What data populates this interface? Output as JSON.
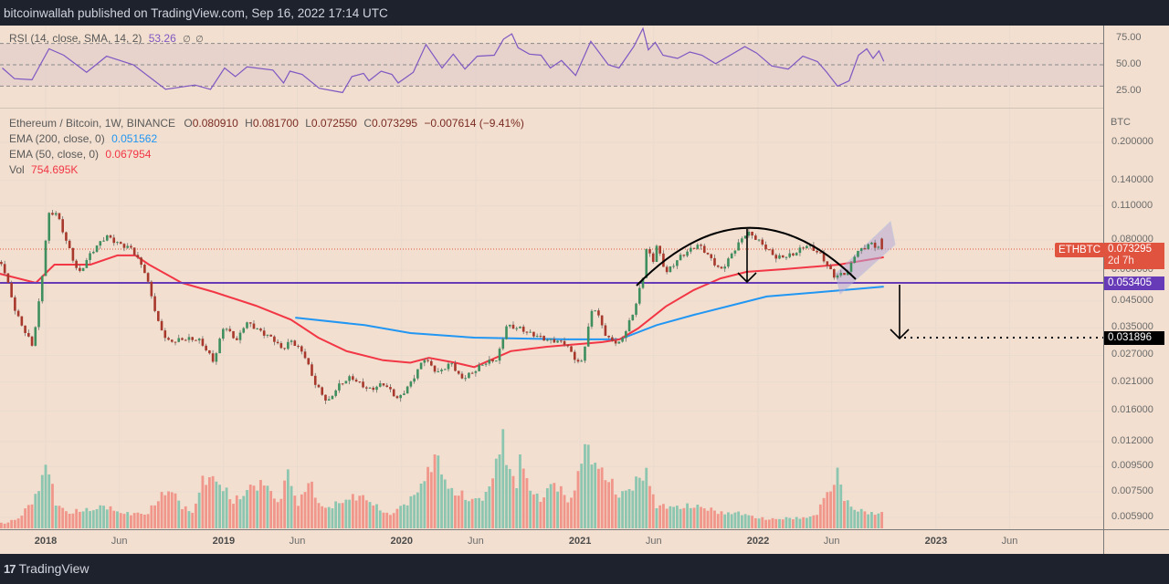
{
  "header": {
    "publisher_line": "bitcoinwallah published on TradingView.com, Sep 16, 2022 17:14 UTC"
  },
  "footer": {
    "logo_mark": "17",
    "logo_text": "TradingView"
  },
  "rsi_legend": {
    "label": "RSI (14, close, SMA, 14, 2)",
    "value": "53.26",
    "na1": "∅",
    "na2": "∅"
  },
  "legend": {
    "symbol": "Ethereum / Bitcoin, 1W, BINANCE",
    "o_label": "O",
    "o": "0.080910",
    "h_label": "H",
    "h": "0.081700",
    "l_label": "L",
    "l": "0.072550",
    "c_label": "C",
    "c": "0.073295",
    "change": "−0.007614 (−9.41%)",
    "ema200_label": "EMA (200, close, 0)",
    "ema200": "0.051562",
    "ema50_label": "EMA (50, close, 0)",
    "ema50": "0.067954",
    "vol_label": "Vol",
    "vol": "754.695K"
  },
  "price_axis": {
    "unit": "BTC",
    "ticks": [
      "0.200000",
      "0.140000",
      "0.110000",
      "0.080000",
      "0.060000",
      "0.045000",
      "0.035000",
      "0.027000",
      "0.021000",
      "0.016000",
      "0.012000",
      "0.009500",
      "0.007500",
      "0.005900"
    ]
  },
  "rsi_axis": {
    "ticks": [
      "75.00",
      "50.00",
      "25.00"
    ],
    "band": [
      30,
      70
    ],
    "mid": 50
  },
  "tags": {
    "symbol": "ETHBTC",
    "last_price": "0.073295",
    "countdown": "2d 7h",
    "support": "0.053405",
    "target": "0.031896"
  },
  "time_axis": [
    {
      "label": "2018",
      "date": "2018-01-01",
      "year": true
    },
    {
      "label": "Jun",
      "date": "2018-06-01"
    },
    {
      "label": "2019",
      "date": "2019-01-01",
      "year": true
    },
    {
      "label": "Jun",
      "date": "2019-06-01"
    },
    {
      "label": "2020",
      "date": "2020-01-01",
      "year": true
    },
    {
      "label": "Jun",
      "date": "2020-06-01"
    },
    {
      "label": "2021",
      "date": "2021-01-01",
      "year": true
    },
    {
      "label": "Jun",
      "date": "2021-06-01"
    },
    {
      "label": "2022",
      "date": "2022-01-01",
      "year": true
    },
    {
      "label": "Jun",
      "date": "2022-06-01"
    },
    {
      "label": "2023",
      "date": "2023-01-01",
      "year": true
    },
    {
      "label": "Jun",
      "date": "2023-06-01"
    }
  ],
  "colors": {
    "up": "#3e8e5e",
    "down": "#a8382c",
    "vol_up": "#8cc5b0",
    "vol_down": "#f0968a",
    "ema200": "#2196f3",
    "ema50": "#f23645",
    "rsi": "#7e57c2",
    "support": "#673ab7",
    "last_tag": "#e0533f",
    "background": "#f2dfcf"
  },
  "chart_data": [
    {
      "type": "candlestick",
      "interval": "1W",
      "scale": "log",
      "ylim": [
        0.0059,
        0.2
      ],
      "last_candle": {
        "date": "2022-09-12",
        "open": 0.08091,
        "high": 0.0817,
        "low": 0.07255,
        "close": 0.073295
      },
      "close_keypoints": [
        [
          "2017-10-05",
          0.0634
        ],
        [
          "2017-11-01",
          0.041
        ],
        [
          "2017-12-05",
          0.0293
        ],
        [
          "2017-12-22",
          0.049
        ],
        [
          "2018-01-06",
          0.0998
        ],
        [
          "2018-01-23",
          0.104
        ],
        [
          "2018-02-11",
          0.082
        ],
        [
          "2018-03-10",
          0.058
        ],
        [
          "2018-04-03",
          0.069
        ],
        [
          "2018-05-06",
          0.0834
        ],
        [
          "2018-06-26",
          0.0737
        ],
        [
          "2018-07-24",
          0.058
        ],
        [
          "2018-08-21",
          0.0363
        ],
        [
          "2018-09-09",
          0.0313
        ],
        [
          "2018-10-07",
          0.0314
        ],
        [
          "2018-11-14",
          0.0306
        ],
        [
          "2018-12-12",
          0.0258
        ],
        [
          "2019-01-01",
          0.0363
        ],
        [
          "2019-01-29",
          0.0306
        ],
        [
          "2019-02-15",
          0.0363
        ],
        [
          "2019-04-12",
          0.0323
        ],
        [
          "2019-05-01",
          0.0285
        ],
        [
          "2019-05-19",
          0.0306
        ],
        [
          "2019-06-16",
          0.0269
        ],
        [
          "2019-07-05",
          0.0215
        ],
        [
          "2019-08-03",
          0.0175
        ],
        [
          "2019-08-22",
          0.0199
        ],
        [
          "2019-09-19",
          0.0217
        ],
        [
          "2019-10-26",
          0.0199
        ],
        [
          "2019-11-24",
          0.0208
        ],
        [
          "2019-12-25",
          0.0175
        ],
        [
          "2020-01-19",
          0.0208
        ],
        [
          "2020-02-16",
          0.0269
        ],
        [
          "2020-03-15",
          0.0227
        ],
        [
          "2020-04-13",
          0.0247
        ],
        [
          "2020-05-01",
          0.0217
        ],
        [
          "2020-06-16",
          0.0251
        ],
        [
          "2020-07-15",
          0.0255
        ],
        [
          "2020-08-03",
          0.0354
        ],
        [
          "2020-09-01",
          0.0354
        ],
        [
          "2020-10-25",
          0.0306
        ],
        [
          "2020-12-02",
          0.0306
        ],
        [
          "2021-01-02",
          0.0247
        ],
        [
          "2021-01-28",
          0.0431
        ],
        [
          "2021-02-25",
          0.0315
        ],
        [
          "2021-03-23",
          0.0306
        ],
        [
          "2021-04-21",
          0.041
        ],
        [
          "2021-05-10",
          0.0557
        ],
        [
          "2021-05-19",
          0.0785
        ],
        [
          "2021-05-28",
          0.0607
        ],
        [
          "2021-06-07",
          0.0752
        ],
        [
          "2021-06-26",
          0.0592
        ],
        [
          "2021-07-24",
          0.0691
        ],
        [
          "2021-09-01",
          0.0752
        ],
        [
          "2021-10-16",
          0.0607
        ],
        [
          "2021-11-14",
          0.0737
        ],
        [
          "2021-12-09",
          0.0848
        ],
        [
          "2022-01-10",
          0.0765
        ],
        [
          "2022-02-07",
          0.0691
        ],
        [
          "2022-03-15",
          0.0691
        ],
        [
          "2022-04-12",
          0.0752
        ],
        [
          "2022-05-10",
          0.0705
        ],
        [
          "2022-06-07",
          0.0572
        ],
        [
          "2022-07-05",
          0.0582
        ],
        [
          "2022-07-19",
          0.0691
        ],
        [
          "2022-08-21",
          0.0785
        ],
        [
          "2022-09-16",
          0.073295
        ]
      ],
      "ema50": [
        [
          "2017-09-28",
          0.0582
        ],
        [
          "2017-12-12",
          0.0534
        ],
        [
          "2018-01-19",
          0.0634
        ],
        [
          "2018-04-03",
          0.0634
        ],
        [
          "2018-05-28",
          0.0691
        ],
        [
          "2018-07-04",
          0.0691
        ],
        [
          "2018-08-01",
          0.0634
        ],
        [
          "2018-10-07",
          0.0534
        ],
        [
          "2018-12-12",
          0.049
        ],
        [
          "2019-03-08",
          0.0431
        ],
        [
          "2019-05-19",
          0.0378
        ],
        [
          "2019-07-14",
          0.0319
        ],
        [
          "2019-09-10",
          0.0281
        ],
        [
          "2019-11-24",
          0.0258
        ],
        [
          "2020-01-19",
          0.0252
        ],
        [
          "2020-02-26",
          0.0264
        ],
        [
          "2020-04-20",
          0.0252
        ],
        [
          "2020-05-29",
          0.0242
        ],
        [
          "2020-08-12",
          0.0281
        ],
        [
          "2020-10-25",
          0.0293
        ],
        [
          "2021-02-16",
          0.0306
        ],
        [
          "2021-03-23",
          0.0314
        ],
        [
          "2021-04-30",
          0.0348
        ],
        [
          "2021-06-26",
          0.0428
        ],
        [
          "2021-08-22",
          0.0499
        ],
        [
          "2021-10-16",
          0.0557
        ],
        [
          "2021-12-09",
          0.0592
        ],
        [
          "2022-02-23",
          0.0607
        ],
        [
          "2022-06-16",
          0.0634
        ],
        [
          "2022-09-16",
          0.067954
        ]
      ],
      "ema200": [
        [
          "2019-05-28",
          0.0385
        ],
        [
          "2019-10-17",
          0.0359
        ],
        [
          "2020-01-19",
          0.0333
        ],
        [
          "2020-05-29",
          0.0319
        ],
        [
          "2020-12-02",
          0.0314
        ],
        [
          "2021-03-23",
          0.0314
        ],
        [
          "2021-06-07",
          0.0359
        ],
        [
          "2021-08-22",
          0.0395
        ],
        [
          "2021-11-05",
          0.0431
        ],
        [
          "2022-01-19",
          0.047
        ],
        [
          "2022-05-10",
          0.049
        ],
        [
          "2022-09-16",
          0.051562
        ]
      ],
      "horizontal_levels": {
        "support": 0.053405,
        "target": 0.031896,
        "last": 0.073295
      }
    },
    {
      "type": "bar",
      "series": "volume",
      "unit": "K",
      "keypoints": [
        [
          "2017-10-10",
          250
        ],
        [
          "2017-11-09",
          560
        ],
        [
          "2017-12-15",
          1720
        ],
        [
          "2018-01-01",
          3400
        ],
        [
          "2018-01-10",
          2530
        ],
        [
          "2018-01-23",
          1200
        ],
        [
          "2018-02-16",
          810
        ],
        [
          "2018-04-03",
          950
        ],
        [
          "2018-05-02",
          1120
        ],
        [
          "2018-06-11",
          740
        ],
        [
          "2018-07-28",
          760
        ],
        [
          "2018-09-02",
          1820
        ],
        [
          "2018-09-12",
          2100
        ],
        [
          "2018-10-08",
          1090
        ],
        [
          "2018-10-30",
          800
        ],
        [
          "2018-11-20",
          2490
        ],
        [
          "2018-12-22",
          2450
        ],
        [
          "2019-01-21",
          1300
        ],
        [
          "2019-02-20",
          2040
        ],
        [
          "2019-04-01",
          2260
        ],
        [
          "2019-04-23",
          1160
        ],
        [
          "2019-05-12",
          2830
        ],
        [
          "2019-06-04",
          1180
        ],
        [
          "2019-06-24",
          2390
        ],
        [
          "2019-07-26",
          950
        ],
        [
          "2019-09-25",
          1620
        ],
        [
          "2019-10-22",
          1510
        ],
        [
          "2019-12-03",
          670
        ],
        [
          "2020-01-19",
          1400
        ],
        [
          "2020-02-11",
          2260
        ],
        [
          "2020-03-11",
          3650
        ],
        [
          "2020-04-10",
          1900
        ],
        [
          "2020-05-27",
          1440
        ],
        [
          "2020-06-24",
          1650
        ],
        [
          "2020-07-28",
          4800
        ],
        [
          "2020-08-05",
          3190
        ],
        [
          "2020-08-23",
          2000
        ],
        [
          "2020-09-02",
          4240
        ],
        [
          "2020-09-10",
          2520
        ],
        [
          "2020-10-09",
          1370
        ],
        [
          "2020-11-07",
          2380
        ],
        [
          "2020-12-12",
          1300
        ],
        [
          "2020-12-29",
          2840
        ],
        [
          "2021-01-08",
          4170
        ],
        [
          "2021-02-04",
          3220
        ],
        [
          "2021-02-28",
          2520
        ],
        [
          "2021-03-20",
          1650
        ],
        [
          "2021-04-19",
          2140
        ],
        [
          "2021-05-19",
          2940
        ],
        [
          "2021-06-05",
          1120
        ],
        [
          "2021-08-03",
          1090
        ],
        [
          "2021-09-02",
          1130
        ],
        [
          "2021-10-13",
          810
        ],
        [
          "2021-11-27",
          760
        ],
        [
          "2022-01-15",
          460
        ],
        [
          "2022-03-24",
          530
        ],
        [
          "2022-04-29",
          600
        ],
        [
          "2022-05-12",
          1340
        ],
        [
          "2022-06-09",
          2520
        ],
        [
          "2022-06-17",
          2830
        ],
        [
          "2022-06-26",
          1480
        ],
        [
          "2022-07-20",
          950
        ],
        [
          "2022-08-23",
          750
        ],
        [
          "2022-09-16",
          754.695
        ]
      ]
    },
    {
      "type": "line",
      "series": "RSI",
      "ylim": [
        0,
        100
      ],
      "points": [
        [
          "2017-10-04",
          47
        ],
        [
          "2017-10-29",
          37
        ],
        [
          "2017-12-04",
          36
        ],
        [
          "2018-01-08",
          65
        ],
        [
          "2018-02-07",
          59
        ],
        [
          "2018-03-26",
          43
        ],
        [
          "2018-05-06",
          58
        ],
        [
          "2018-06-30",
          50
        ],
        [
          "2018-09-04",
          27
        ],
        [
          "2018-11-03",
          31
        ],
        [
          "2018-12-05",
          27
        ],
        [
          "2019-01-03",
          47
        ],
        [
          "2019-01-25",
          39
        ],
        [
          "2019-02-18",
          48
        ],
        [
          "2019-04-12",
          45
        ],
        [
          "2019-05-04",
          33
        ],
        [
          "2019-05-17",
          44
        ],
        [
          "2019-06-11",
          41
        ],
        [
          "2019-07-16",
          28
        ],
        [
          "2019-09-02",
          24
        ],
        [
          "2019-09-21",
          39
        ],
        [
          "2019-10-15",
          42
        ],
        [
          "2019-10-26",
          35
        ],
        [
          "2019-11-20",
          44
        ],
        [
          "2019-12-12",
          41
        ],
        [
          "2019-12-25",
          33
        ],
        [
          "2020-01-25",
          43
        ],
        [
          "2020-02-20",
          69
        ],
        [
          "2020-03-24",
          47
        ],
        [
          "2020-04-16",
          60
        ],
        [
          "2020-05-10",
          46
        ],
        [
          "2020-06-04",
          58
        ],
        [
          "2020-07-09",
          59
        ],
        [
          "2020-07-28",
          74
        ],
        [
          "2020-08-14",
          79
        ],
        [
          "2020-08-27",
          66
        ],
        [
          "2020-09-19",
          60
        ],
        [
          "2020-10-13",
          59
        ],
        [
          "2020-11-01",
          47
        ],
        [
          "2020-11-24",
          54
        ],
        [
          "2020-12-23",
          40
        ],
        [
          "2021-01-23",
          72
        ],
        [
          "2021-02-28",
          50
        ],
        [
          "2021-03-22",
          47
        ],
        [
          "2021-04-21",
          67
        ],
        [
          "2021-05-10",
          84
        ],
        [
          "2021-05-21",
          64
        ],
        [
          "2021-06-04",
          71
        ],
        [
          "2021-06-20",
          59
        ],
        [
          "2021-07-20",
          56
        ],
        [
          "2021-08-14",
          62
        ],
        [
          "2021-09-08",
          59
        ],
        [
          "2021-10-06",
          51
        ],
        [
          "2021-11-05",
          59
        ],
        [
          "2021-12-05",
          67
        ],
        [
          "2021-12-29",
          61
        ],
        [
          "2022-01-29",
          49
        ],
        [
          "2022-03-04",
          46
        ],
        [
          "2022-04-03",
          58
        ],
        [
          "2022-05-03",
          53
        ],
        [
          "2022-05-22",
          43
        ],
        [
          "2022-06-13",
          30
        ],
        [
          "2022-07-07",
          35
        ],
        [
          "2022-07-26",
          59
        ],
        [
          "2022-08-12",
          65
        ],
        [
          "2022-08-25",
          56
        ],
        [
          "2022-09-06",
          63
        ],
        [
          "2022-09-16",
          53.26
        ]
      ]
    }
  ]
}
